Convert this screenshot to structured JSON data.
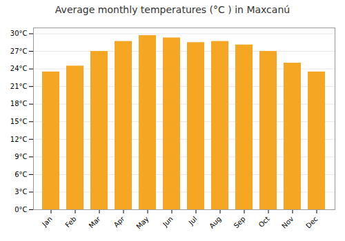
{
  "chart_data": {
    "type": "bar",
    "title": "Average monthly temperatures (°C ) in Maxcanú",
    "categories": [
      "Jan",
      "Feb",
      "Mar",
      "Apr",
      "May",
      "Jun",
      "Jul",
      "Aug",
      "Sep",
      "Oct",
      "Nov",
      "Dec"
    ],
    "values": [
      23.5,
      24.5,
      27.0,
      28.7,
      29.7,
      29.3,
      28.5,
      28.7,
      28.1,
      27.0,
      25.0,
      23.5
    ],
    "color": "#F5A623",
    "ylim": [
      0,
      31
    ],
    "yticks": [
      {
        "value": 0,
        "label": "0°C"
      },
      {
        "value": 3,
        "label": "3°C"
      },
      {
        "value": 6,
        "label": "6°C"
      },
      {
        "value": 9,
        "label": "9°C"
      },
      {
        "value": 12,
        "label": "12°C"
      },
      {
        "value": 15,
        "label": "15°C"
      },
      {
        "value": 18,
        "label": "18°C"
      },
      {
        "value": 21,
        "label": "21°C"
      },
      {
        "value": 24,
        "label": "24°C"
      },
      {
        "value": 27,
        "label": "27°C"
      },
      {
        "value": 30,
        "label": "30°C"
      }
    ],
    "grid": true
  }
}
